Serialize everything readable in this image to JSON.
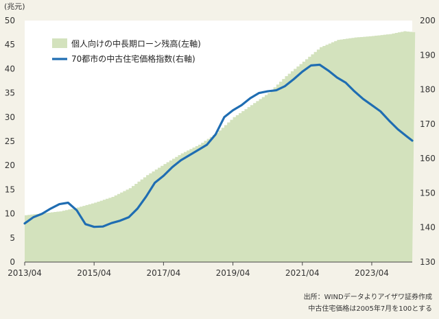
{
  "chart_data": {
    "type": "area+line",
    "y_left_unit": "(兆元)",
    "y_left_range": [
      0,
      50
    ],
    "y_left_ticks": [
      0,
      5,
      10,
      15,
      20,
      25,
      30,
      35,
      40,
      45,
      50
    ],
    "y_right_range": [
      130,
      200
    ],
    "y_right_ticks": [
      130,
      140,
      150,
      160,
      170,
      180,
      190,
      200
    ],
    "x_tick_labels": [
      "2013/04",
      "2015/04",
      "2017/04",
      "2019/04",
      "2021/04",
      "2023/04"
    ],
    "x_range": [
      "2013/04",
      "2024/06"
    ],
    "grid": false,
    "legend_position": "top-left",
    "series": [
      {
        "name": "個人向けの中長期ローン残高(左軸)",
        "type": "area",
        "axis": "left",
        "color": "#d3e2bd",
        "points": [
          [
            "2013/04",
            9.7
          ],
          [
            "2013/10",
            10.1
          ],
          [
            "2014/04",
            10.5
          ],
          [
            "2014/10",
            11.3
          ],
          [
            "2015/04",
            12.3
          ],
          [
            "2015/10",
            13.5
          ],
          [
            "2016/04",
            15.3
          ],
          [
            "2016/10",
            18.0
          ],
          [
            "2017/04",
            20.3
          ],
          [
            "2017/10",
            22.5
          ],
          [
            "2018/04",
            24.3
          ],
          [
            "2018/10",
            26.7
          ],
          [
            "2019/04",
            30.0
          ],
          [
            "2019/10",
            32.5
          ],
          [
            "2020/04",
            35.0
          ],
          [
            "2020/10",
            38.5
          ],
          [
            "2021/04",
            41.5
          ],
          [
            "2021/10",
            44.5
          ],
          [
            "2022/04",
            46.0
          ],
          [
            "2022/10",
            46.5
          ],
          [
            "2023/04",
            46.8
          ],
          [
            "2023/10",
            47.2
          ],
          [
            "2024/03",
            47.8
          ],
          [
            "2024/06",
            47.6
          ]
        ]
      },
      {
        "name": "70都市の中古住宅価格指数(右軸)",
        "type": "line",
        "axis": "right",
        "color": "#1f6db2",
        "points": [
          [
            "2013/04",
            141.2
          ],
          [
            "2013/07",
            143.0
          ],
          [
            "2013/10",
            144.0
          ],
          [
            "2014/01",
            145.5
          ],
          [
            "2014/04",
            146.8
          ],
          [
            "2014/07",
            147.2
          ],
          [
            "2014/10",
            145.0
          ],
          [
            "2015/01",
            141.0
          ],
          [
            "2015/04",
            140.2
          ],
          [
            "2015/07",
            140.3
          ],
          [
            "2015/10",
            141.3
          ],
          [
            "2016/01",
            142.0
          ],
          [
            "2016/04",
            143.0
          ],
          [
            "2016/07",
            145.5
          ],
          [
            "2016/10",
            149.0
          ],
          [
            "2017/01",
            153.0
          ],
          [
            "2017/04",
            155.0
          ],
          [
            "2017/07",
            157.5
          ],
          [
            "2017/10",
            159.5
          ],
          [
            "2018/01",
            161.0
          ],
          [
            "2018/04",
            162.5
          ],
          [
            "2018/07",
            164.0
          ],
          [
            "2018/10",
            167.0
          ],
          [
            "2019/01",
            172.0
          ],
          [
            "2019/04",
            174.0
          ],
          [
            "2019/07",
            175.5
          ],
          [
            "2019/10",
            177.5
          ],
          [
            "2020/01",
            179.0
          ],
          [
            "2020/04",
            179.5
          ],
          [
            "2020/07",
            179.8
          ],
          [
            "2020/10",
            181.0
          ],
          [
            "2021/01",
            183.0
          ],
          [
            "2021/04",
            185.2
          ],
          [
            "2021/07",
            187.0
          ],
          [
            "2021/10",
            187.2
          ],
          [
            "2022/01",
            185.5
          ],
          [
            "2022/04",
            183.5
          ],
          [
            "2022/07",
            182.0
          ],
          [
            "2022/10",
            179.5
          ],
          [
            "2023/01",
            177.3
          ],
          [
            "2023/04",
            175.5
          ],
          [
            "2023/07",
            173.7
          ],
          [
            "2023/10",
            171.0
          ],
          [
            "2024/01",
            168.5
          ],
          [
            "2024/04",
            166.5
          ],
          [
            "2024/06",
            165.2
          ]
        ]
      }
    ]
  },
  "source": {
    "line1": "出所：WINDデータよりアイザワ証券作成",
    "line2": "中古住宅価格は2005年7月を100とする"
  }
}
